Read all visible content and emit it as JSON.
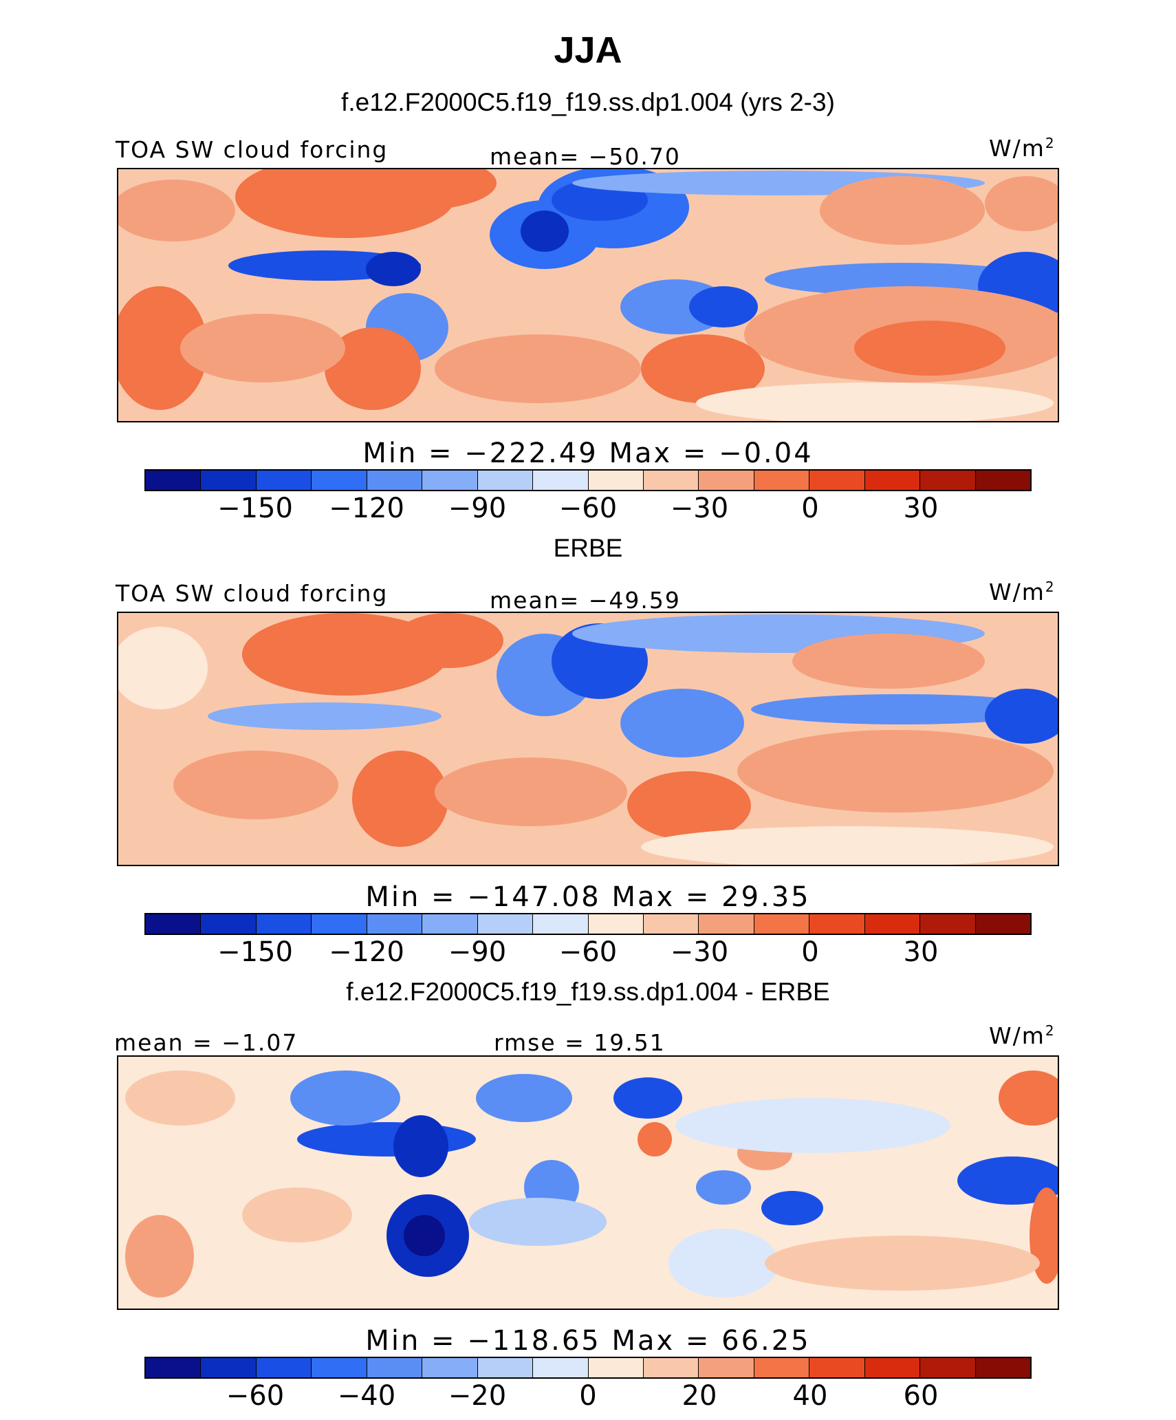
{
  "title": "JJA",
  "colors": {
    "palette": [
      "#08108c",
      "#0a2fc0",
      "#1a4fe6",
      "#2f6ef5",
      "#5a8ef5",
      "#86adf7",
      "#b6cff9",
      "#dbe8fb",
      "#fde9d7",
      "#f9c8ab",
      "#f5a07c",
      "#f27447",
      "#ea4a21",
      "#d92c0f",
      "#b01a08",
      "#860c04"
    ]
  },
  "panels": [
    {
      "subtitle": "f.e12.F2000C5.f19_f19.ss.dp1.004 (yrs 2-3)",
      "left_label": "TOA SW cloud forcing",
      "center_label": "mean=  −50.70",
      "unit": "W/m",
      "unit_sup": "2",
      "stats": "Min  =  −222.49  Max  =    −0.04",
      "ticks": [
        "−150",
        "−120",
        "−90",
        "−60",
        "−30",
        "0",
        "30"
      ]
    },
    {
      "subtitle": "ERBE",
      "left_label": "TOA SW cloud forcing",
      "center_label": "mean=  −49.59",
      "unit": "W/m",
      "unit_sup": "2",
      "stats": "Min  =  −147.08  Max  =    29.35",
      "ticks": [
        "−150",
        "−120",
        "−90",
        "−60",
        "−30",
        "0",
        "30"
      ]
    },
    {
      "subtitle": "f.e12.F2000C5.f19_f19.ss.dp1.004 - ERBE",
      "left_label": "mean  =   −1.07",
      "center_label": "rmse  =   19.51",
      "unit": "W/m",
      "unit_sup": "2",
      "stats": "Min  =  −118.65  Max  =    66.25",
      "ticks": [
        "−60",
        "−40",
        "−20",
        "0",
        "20",
        "40",
        "60"
      ]
    }
  ]
}
